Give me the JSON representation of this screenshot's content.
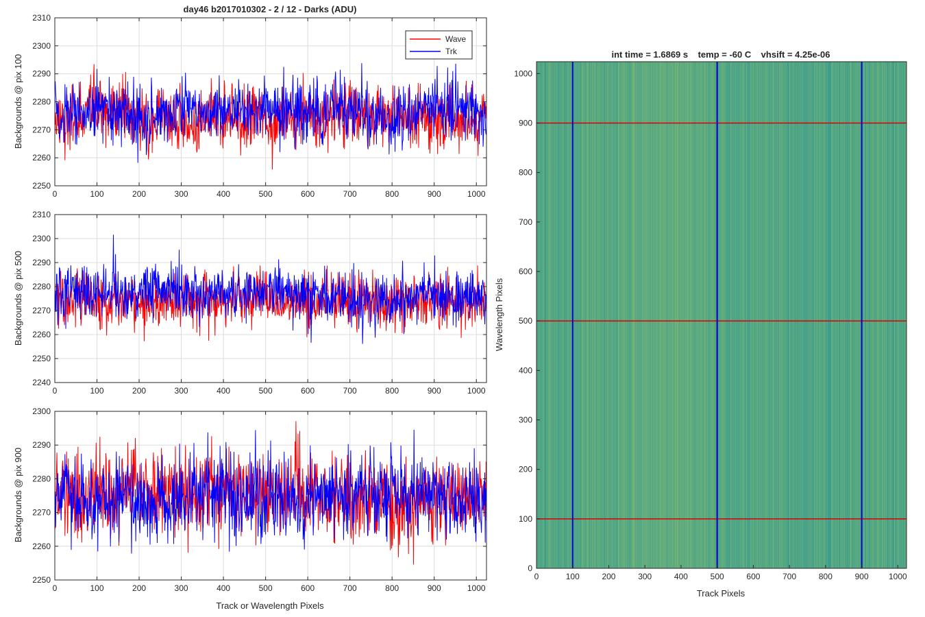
{
  "figure_title": "day46 b2017010302 - 2 / 12 - Darks (ADU)",
  "chart_data": [
    {
      "type": "line",
      "ylabel": "Backgrounds @ pix 100",
      "xlabel": "",
      "xlim": [
        0,
        1024
      ],
      "ylim": [
        2250,
        2310
      ],
      "xticks": [
        0,
        100,
        200,
        300,
        400,
        500,
        600,
        700,
        800,
        900,
        1000
      ],
      "yticks": [
        2250,
        2260,
        2270,
        2280,
        2290,
        2300,
        2310
      ],
      "grid": true,
      "legend": "top-right",
      "series": [
        {
          "name": "Wave",
          "color": "#ff0000",
          "mean": 2274,
          "sd": 5.5
        },
        {
          "name": "Trk",
          "color": "#0000ff",
          "mean": 2276,
          "sd": 5.5
        }
      ]
    },
    {
      "type": "line",
      "ylabel": "Backgrounds @ pix 500",
      "xlabel": "",
      "xlim": [
        0,
        1024
      ],
      "ylim": [
        2240,
        2310
      ],
      "xticks": [
        0,
        100,
        200,
        300,
        400,
        500,
        600,
        700,
        800,
        900,
        1000
      ],
      "yticks": [
        2240,
        2250,
        2260,
        2270,
        2280,
        2290,
        2300,
        2310
      ],
      "grid": true,
      "series": [
        {
          "name": "Wave",
          "color": "#ff0000",
          "mean": 2274,
          "sd": 5.5
        },
        {
          "name": "Trk",
          "color": "#0000ff",
          "mean": 2277,
          "sd": 5.5
        }
      ]
    },
    {
      "type": "line",
      "ylabel": "Backgrounds @ pix 900",
      "xlabel": "Track or Wavelength Pixels",
      "xlim": [
        0,
        1024
      ],
      "ylim": [
        2250,
        2300
      ],
      "xticks": [
        0,
        100,
        200,
        300,
        400,
        500,
        600,
        700,
        800,
        900,
        1000
      ],
      "yticks": [
        2250,
        2260,
        2270,
        2280,
        2290,
        2300
      ],
      "grid": true,
      "series": [
        {
          "name": "Wave",
          "color": "#ff0000",
          "mean": 2275,
          "sd": 6
        },
        {
          "name": "Trk",
          "color": "#0000ff",
          "mean": 2274,
          "sd": 6
        }
      ]
    },
    {
      "type": "heatmap",
      "title": "int time = 1.6869 s    temp = -60 C    vhsift = 4.25e-06",
      "xlabel": "Track Pixels",
      "ylabel": "Wavelength Pixels",
      "xlim": [
        0,
        1024
      ],
      "ylim": [
        0,
        1024
      ],
      "xticks": [
        0,
        100,
        200,
        300,
        400,
        500,
        600,
        700,
        800,
        900,
        1000
      ],
      "yticks": [
        0,
        100,
        200,
        300,
        400,
        500,
        600,
        700,
        800,
        900,
        1000
      ],
      "vlines": {
        "values": [
          100,
          500,
          900
        ],
        "color": "#0000cc"
      },
      "hlines": {
        "values": [
          100,
          500,
          900
        ],
        "color": "#dd0000"
      }
    }
  ]
}
